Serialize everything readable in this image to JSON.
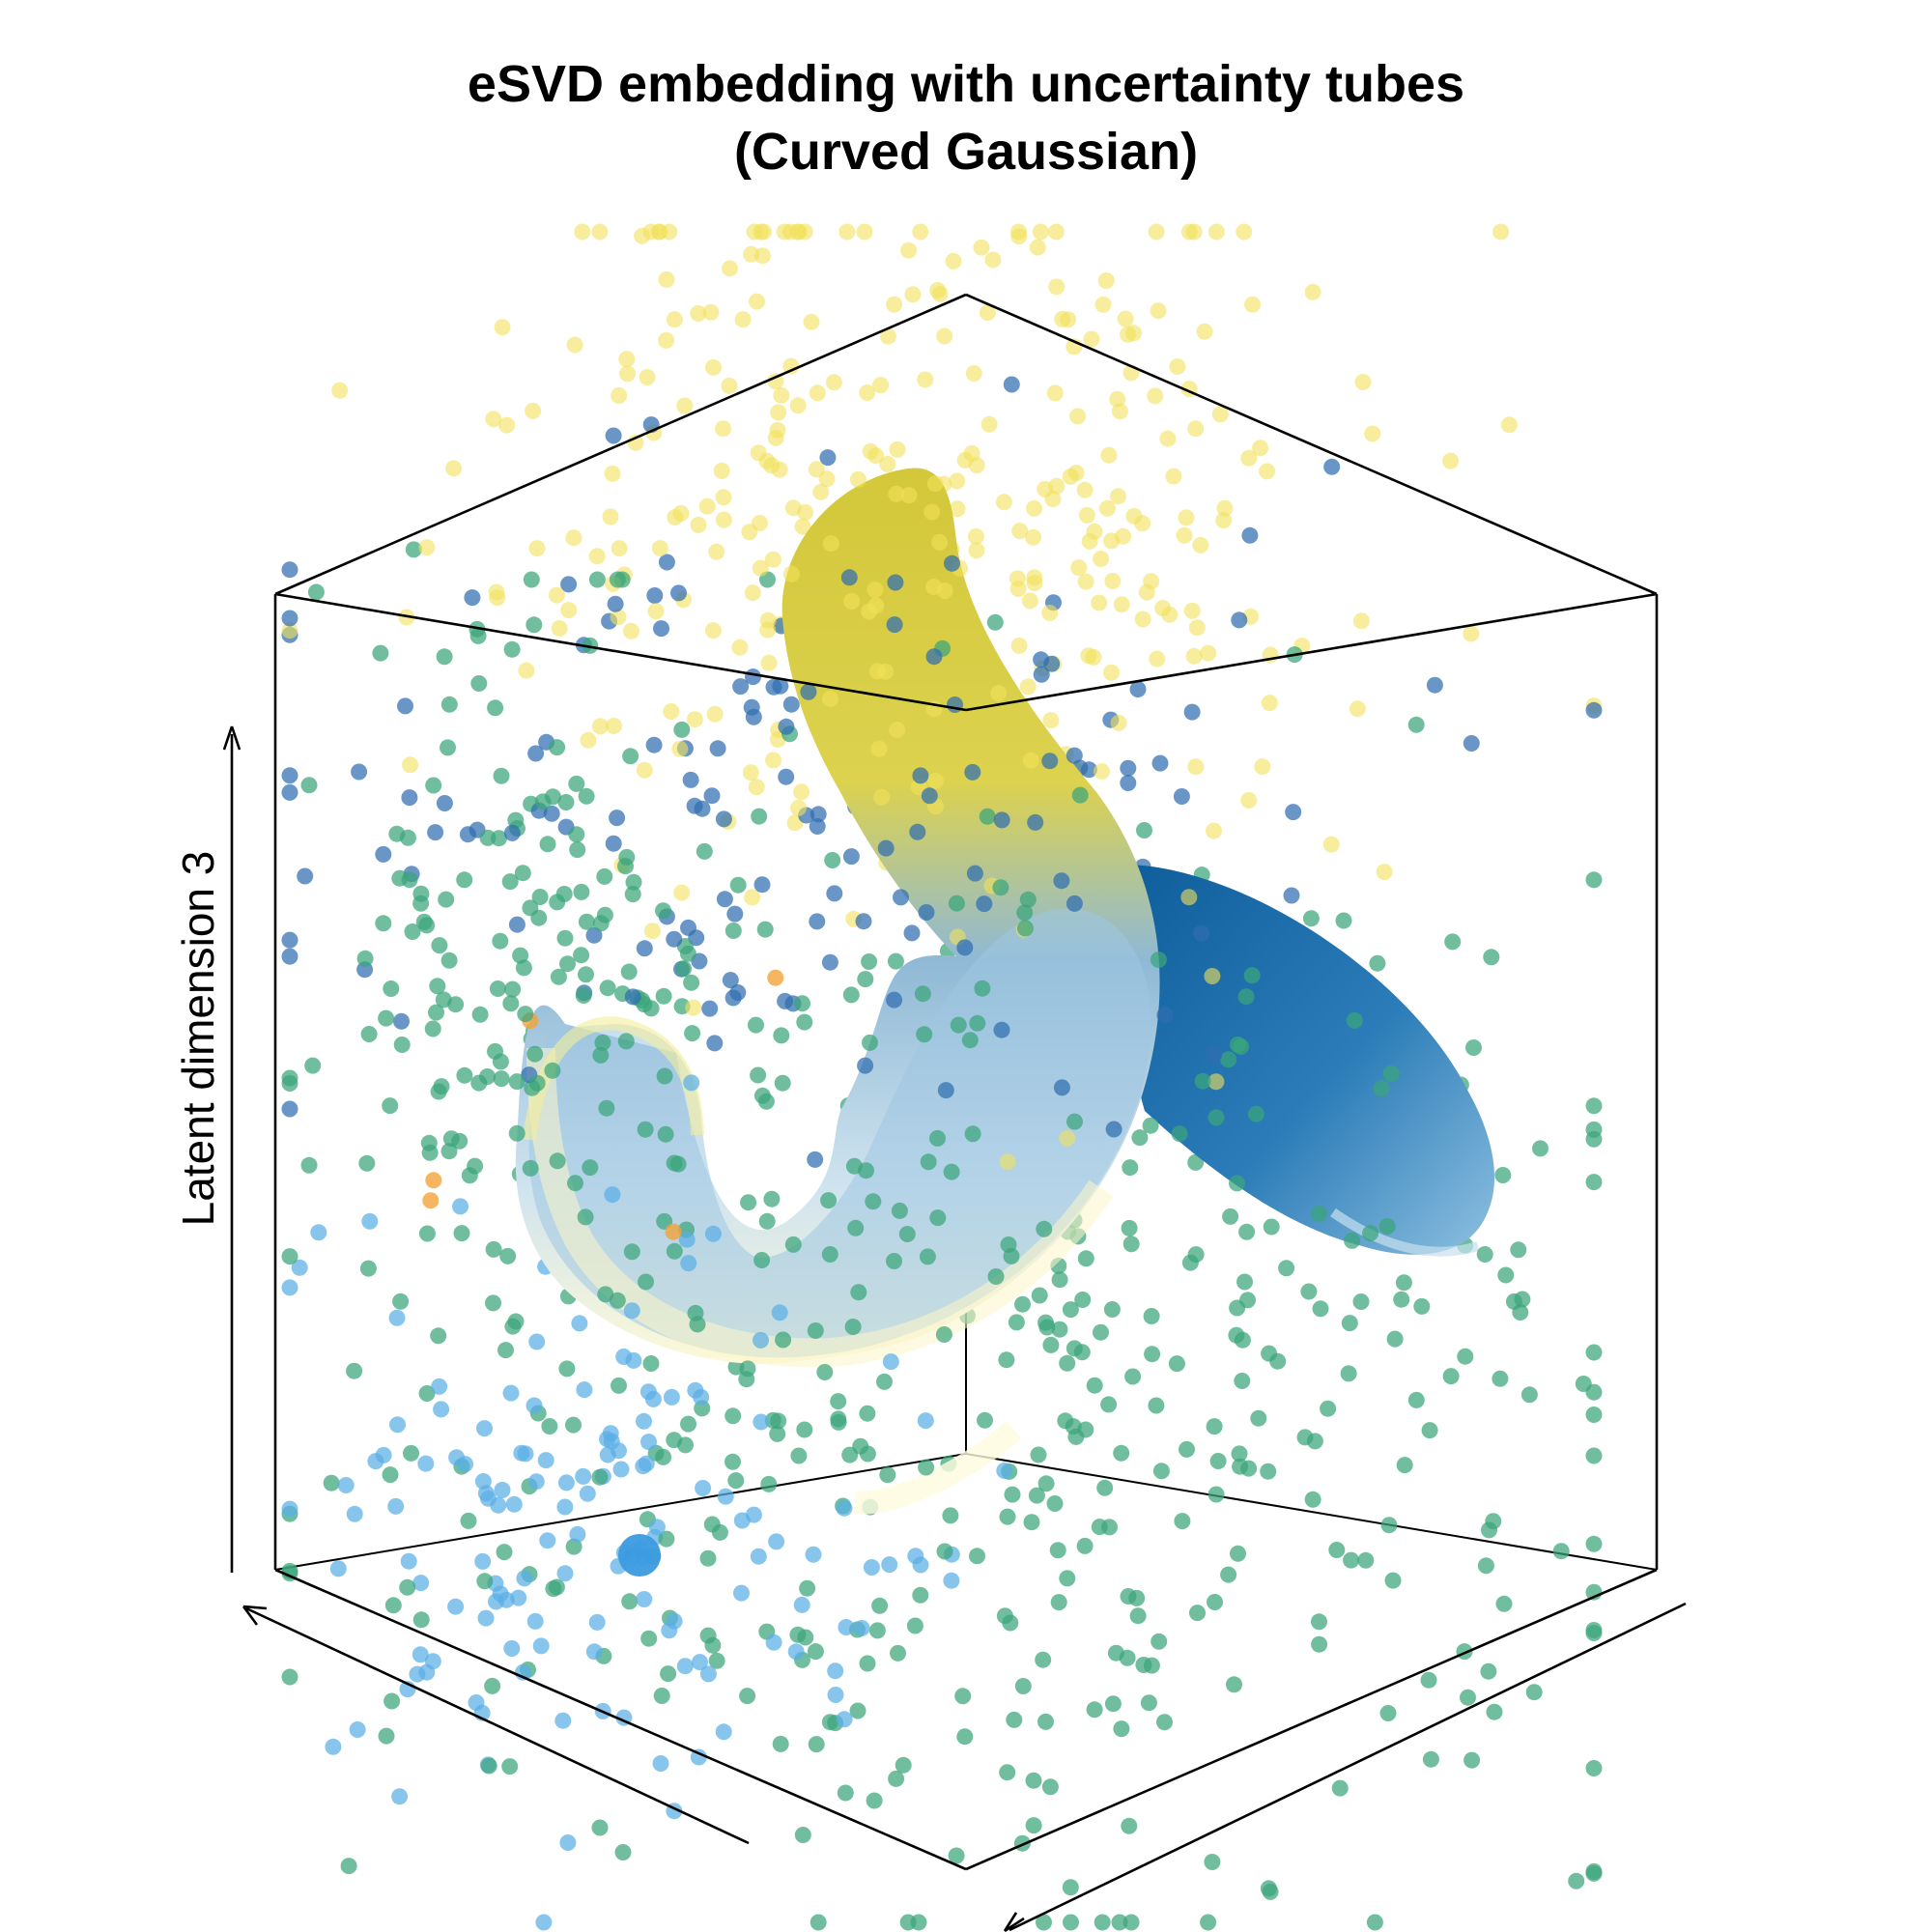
{
  "chart_data": {
    "type": "scatter",
    "projection": "3d",
    "title": "eSVD embedding with uncertainty tubes",
    "subtitle": "(Curved Gaussian)",
    "xlabel": "",
    "ylabel": "",
    "zlabel": "Latent dimension 3",
    "grid": false,
    "legend": "none",
    "colors": {
      "yellow_cells": "#f2e15a",
      "green_cells": "#3aa57a",
      "dark_blue_cells": "#2f6db0",
      "light_blue_cells": "#5aaee6",
      "orange_cells": "#f2a33a",
      "tube_yellow": "#d8cb3a",
      "tube_blue": "#1f6fae",
      "tube_pale": "#fbf6c6"
    },
    "series": [
      {
        "values": []
      },
      {
        "values": []
      },
      {
        "values": []
      },
      {
        "values": []
      },
      {
        "values": []
      }
    ],
    "tubes": [
      {
        "color": "tube_yellow"
      },
      {
        "color": "tube_blue"
      }
    ]
  }
}
